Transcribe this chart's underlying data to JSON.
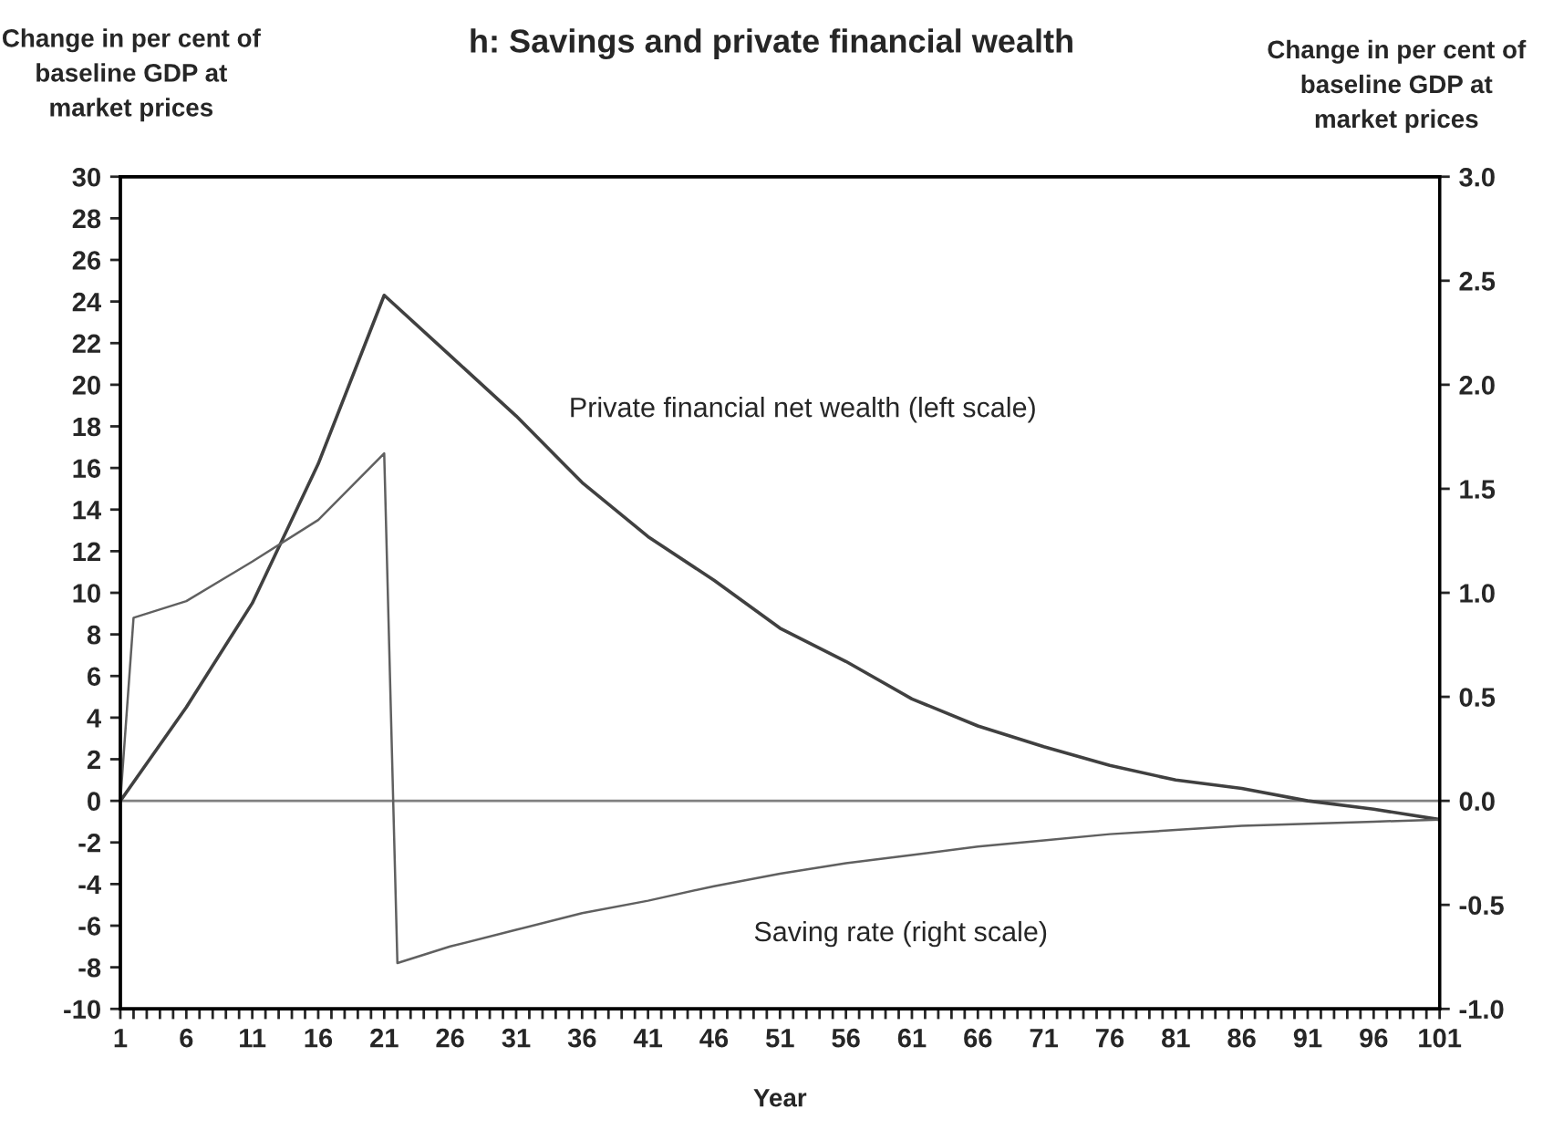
{
  "chart_data": {
    "type": "line",
    "title": "h: Savings and private financial wealth",
    "xlabel": "Year",
    "ylabel": "Change in per cent of\nbaseline GDP at\nmarket prices",
    "y2label": "Change in per cent of\nbaseline GDP at\nmarket prices",
    "series": [
      {
        "color": "#404040",
        "x": [
          1,
          6,
          11,
          16,
          21,
          26,
          31,
          36,
          41,
          46,
          51,
          56,
          61,
          66,
          71,
          76,
          81,
          86,
          91,
          96,
          101
        ],
        "values": [
          0,
          4.5,
          9.5,
          16.2,
          24.3,
          21.4,
          18.5,
          15.3,
          12.7,
          10.6,
          8.3,
          6.7,
          4.9,
          3.6,
          2.6,
          1.7,
          1.0,
          0.6,
          0,
          -0.4,
          -0.9
        ]
      },
      {
        "color": "#606060",
        "axis": "y2",
        "x": [
          1,
          2,
          6,
          11,
          16,
          21,
          22,
          26,
          31,
          36,
          41,
          46,
          51,
          56,
          61,
          66,
          71,
          76,
          81,
          86,
          91,
          96,
          101
        ],
        "values": [
          0,
          0.88,
          0.96,
          1.15,
          1.35,
          1.67,
          -0.78,
          -0.7,
          -0.62,
          -0.54,
          -0.48,
          -0.41,
          -0.35,
          -0.3,
          -0.26,
          -0.22,
          -0.19,
          -0.16,
          -0.14,
          -0.12,
          -0.11,
          -0.1,
          -0.09
        ]
      }
    ],
    "xlim": [
      1,
      101
    ],
    "xticks": [
      1,
      {
        "value": 2,
        "label": null
      },
      {
        "value": 3,
        "label": null
      },
      {
        "value": 4,
        "label": null
      },
      {
        "value": 5,
        "label": null
      },
      6,
      {
        "value": 7,
        "label": null
      },
      {
        "value": 8,
        "label": null
      },
      {
        "value": 9,
        "label": null
      },
      {
        "value": 10,
        "label": null
      },
      11,
      {
        "value": 12,
        "label": null
      },
      {
        "value": 13,
        "label": null
      },
      {
        "value": 14,
        "label": null
      },
      {
        "value": 15,
        "label": null
      },
      16,
      {
        "value": 17,
        "label": null
      },
      {
        "value": 18,
        "label": null
      },
      {
        "value": 19,
        "label": null
      },
      {
        "value": 20,
        "label": null
      },
      21,
      {
        "value": 22,
        "label": null
      },
      {
        "value": 23,
        "label": null
      },
      {
        "value": 24,
        "label": null
      },
      {
        "value": 25,
        "label": null
      },
      26,
      {
        "value": 27,
        "label": null
      },
      {
        "value": 28,
        "label": null
      },
      {
        "value": 29,
        "label": null
      },
      {
        "value": 30,
        "label": null
      },
      31,
      {
        "value": 32,
        "label": null
      },
      {
        "value": 33,
        "label": null
      },
      {
        "value": 34,
        "label": null
      },
      {
        "value": 35,
        "label": null
      },
      36,
      {
        "value": 37,
        "label": null
      },
      {
        "value": 38,
        "label": null
      },
      {
        "value": 39,
        "label": null
      },
      {
        "value": 40,
        "label": null
      },
      41,
      {
        "value": 42,
        "label": null
      },
      {
        "value": 43,
        "label": null
      },
      {
        "value": 44,
        "label": null
      },
      {
        "value": 45,
        "label": null
      },
      46,
      {
        "value": 47,
        "label": null
      },
      {
        "value": 48,
        "label": null
      },
      {
        "value": 49,
        "label": null
      },
      {
        "value": 50,
        "label": null
      },
      51,
      {
        "value": 52,
        "label": null
      },
      {
        "value": 53,
        "label": null
      },
      {
        "value": 54,
        "label": null
      },
      {
        "value": 55,
        "label": null
      },
      56,
      {
        "value": 57,
        "label": null
      },
      {
        "value": 58,
        "label": null
      },
      {
        "value": 59,
        "label": null
      },
      {
        "value": 60,
        "label": null
      },
      61,
      {
        "value": 62,
        "label": null
      },
      {
        "value": 63,
        "label": null
      },
      {
        "value": 64,
        "label": null
      },
      {
        "value": 65,
        "label": null
      },
      66,
      {
        "value": 67,
        "label": null
      },
      {
        "value": 68,
        "label": null
      },
      {
        "value": 69,
        "label": null
      },
      {
        "value": 70,
        "label": null
      },
      71,
      {
        "value": 72,
        "label": null
      },
      {
        "value": 73,
        "label": null
      },
      {
        "value": 74,
        "label": null
      },
      {
        "value": 75,
        "label": null
      },
      76,
      {
        "value": 77,
        "label": null
      },
      {
        "value": 78,
        "label": null
      },
      {
        "value": 79,
        "label": null
      },
      {
        "value": 80,
        "label": null
      },
      81,
      {
        "value": 82,
        "label": null
      },
      {
        "value": 83,
        "label": null
      },
      {
        "value": 84,
        "label": null
      },
      {
        "value": 85,
        "label": null
      },
      86,
      {
        "value": 87,
        "label": null
      },
      {
        "value": 88,
        "label": null
      },
      {
        "value": 89,
        "label": null
      },
      {
        "value": 90,
        "label": null
      },
      91,
      {
        "value": 92,
        "label": null
      },
      {
        "value": 93,
        "label": null
      },
      {
        "value": 94,
        "label": null
      },
      {
        "value": 95,
        "label": null
      },
      96,
      {
        "value": 97,
        "label": null
      },
      {
        "value": 98,
        "label": null
      },
      {
        "value": 99,
        "label": null
      },
      {
        "value": 100,
        "label": null
      },
      101
    ],
    "ylim": [
      -10,
      30
    ],
    "yticks": [
      -10,
      -8,
      -6,
      -4,
      -2,
      0,
      2,
      4,
      6,
      8,
      10,
      12,
      14,
      16,
      18,
      20,
      22,
      24,
      26,
      28,
      30
    ],
    "y2lim": [
      -1.0,
      3.0
    ],
    "y2ticks": [
      {
        "value": -1.0,
        "label": "-1.0"
      },
      {
        "value": -0.5,
        "label": "-0.5"
      },
      {
        "value": 0.0,
        "label": "0.0"
      },
      {
        "value": 0.5,
        "label": "0.5"
      },
      {
        "value": 1.0,
        "label": "1.0"
      },
      {
        "value": 1.5,
        "label": "1.5"
      },
      {
        "value": 2.0,
        "label": "2.0"
      },
      {
        "value": 2.5,
        "label": "2.5"
      },
      {
        "value": 3.0,
        "label": "3.0"
      }
    ],
    "ref_lines": [
      {
        "axis": "y",
        "value": 0,
        "color": "#808080"
      }
    ],
    "annotations": [
      "Private financial net wealth (left scale)",
      "Saving rate (right scale)"
    ],
    "grid": false,
    "legend": false,
    "marker": "none",
    "line_style": "solid"
  }
}
